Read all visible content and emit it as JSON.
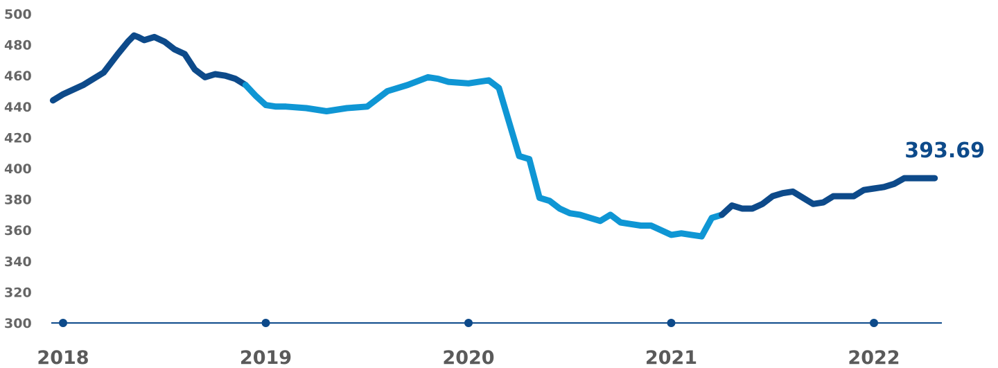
{
  "colors": {
    "dark_blue": "#0d4a8a",
    "light_blue": "#0f96d4",
    "tick_text": "#666666",
    "axis_line": "#0d4a8a"
  },
  "chart_data": {
    "type": "line",
    "title": "",
    "xlabel": "",
    "ylabel": "",
    "ylim": [
      300,
      500
    ],
    "y_ticks": [
      "500",
      "480",
      "460",
      "440",
      "420",
      "400",
      "380",
      "360",
      "340",
      "320",
      "300"
    ],
    "x_ticks": [
      "2018",
      "2019",
      "2020",
      "2021",
      "2022"
    ],
    "x_range": [
      2018,
      2022.4
    ],
    "grid": false,
    "legend": "none",
    "end_label": "393.69",
    "series": [
      {
        "x": [
          2017.95,
          2018.0,
          2018.1,
          2018.2,
          2018.27,
          2018.32,
          2018.35,
          2018.37,
          2018.4,
          2018.45,
          2018.5,
          2018.55,
          2018.6,
          2018.65,
          2018.7,
          2018.75,
          2018.8,
          2018.85,
          2018.9,
          2018.95,
          2019.0,
          2019.05,
          2019.1,
          2019.2,
          2019.3,
          2019.4,
          2019.5,
          2019.6,
          2019.7,
          2019.8,
          2019.85,
          2019.9,
          2020.0,
          2020.05,
          2020.1,
          2020.15,
          2020.2,
          2020.25,
          2020.3,
          2020.35,
          2020.4,
          2020.45,
          2020.5,
          2020.55,
          2020.6,
          2020.65,
          2020.7,
          2020.75,
          2020.8,
          2020.85,
          2020.9,
          2021.0,
          2021.05,
          2021.1,
          2021.15,
          2021.2,
          2021.25,
          2021.3,
          2021.35,
          2021.4,
          2021.45,
          2021.5,
          2021.55,
          2021.6,
          2021.65,
          2021.7,
          2021.75,
          2021.8,
          2021.85,
          2021.9,
          2021.95,
          2022.0,
          2022.05,
          2022.1,
          2022.15,
          2022.2,
          2022.25,
          2022.3,
          2022.35,
          2022.4
        ],
        "y": [
          444,
          448,
          454,
          462,
          474,
          482,
          486,
          485,
          483,
          485,
          482,
          477,
          474,
          464,
          459,
          461,
          460,
          458,
          454,
          447,
          441,
          440,
          440,
          439,
          437,
          439,
          440,
          450,
          454,
          459,
          458,
          456,
          455,
          456,
          457,
          452,
          430,
          408,
          406,
          381,
          379,
          374,
          371,
          370,
          368,
          366,
          370,
          365,
          364,
          363,
          363,
          357,
          358,
          357,
          356,
          368,
          370,
          376,
          374,
          374,
          377,
          382,
          384,
          385,
          381,
          377,
          378,
          382,
          382,
          382,
          386,
          387,
          388,
          390,
          393.69,
          393.69,
          393.69,
          393.69,
          393.69,
          393.69
        ],
        "segments": [
          {
            "color": "dark_blue",
            "from": 2017.95,
            "to": 2018.9
          },
          {
            "color": "light_blue",
            "from": 2018.9,
            "to": 2021.25
          },
          {
            "color": "dark_blue",
            "from": 2021.25,
            "to": 2022.3
          }
        ]
      }
    ]
  }
}
